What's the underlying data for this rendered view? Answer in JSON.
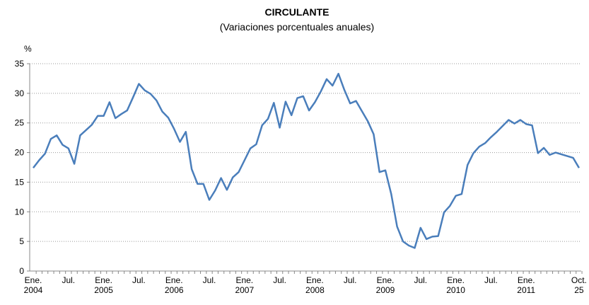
{
  "chart_data": {
    "type": "line",
    "title": "CIRCULANTE",
    "subtitle": "(Variaciones porcentuales anuales)",
    "ylabel": "%",
    "categories": [
      "Ene. 2004",
      null,
      null,
      null,
      null,
      null,
      "Jul.",
      null,
      null,
      null,
      null,
      null,
      "Ene. 2005",
      null,
      null,
      null,
      null,
      null,
      "Jul.",
      null,
      null,
      null,
      null,
      null,
      "Ene. 2006",
      null,
      null,
      null,
      null,
      null,
      "Jul.",
      null,
      null,
      null,
      null,
      null,
      "Ene. 2007",
      null,
      null,
      null,
      null,
      null,
      "Jul.",
      null,
      null,
      null,
      null,
      null,
      "Ene. 2008",
      null,
      null,
      null,
      null,
      null,
      "Jul.",
      null,
      null,
      null,
      null,
      null,
      "Ene. 2009",
      null,
      null,
      null,
      null,
      null,
      "Jul.",
      null,
      null,
      null,
      null,
      null,
      "Ene. 2010",
      null,
      null,
      null,
      null,
      null,
      "Jul.",
      null,
      null,
      null,
      null,
      null,
      "Ene. 2011",
      null,
      null,
      null,
      null,
      null,
      null,
      null,
      null,
      "Oct. 25"
    ],
    "series": [
      {
        "name": "Circulante",
        "color": "#4a7ebb",
        "values": [
          17.4,
          18.7,
          19.8,
          22.3,
          22.9,
          21.3,
          20.7,
          18.1,
          22.9,
          23.8,
          24.7,
          26.2,
          26.2,
          28.5,
          25.8,
          26.5,
          27.1,
          29.3,
          31.6,
          30.5,
          29.9,
          28.8,
          26.9,
          25.9,
          24.0,
          21.8,
          23.5,
          17.2,
          14.7,
          14.7,
          12.0,
          13.6,
          15.7,
          13.7,
          15.8,
          16.7,
          18.7,
          20.7,
          21.4,
          24.6,
          25.7,
          28.4,
          24.2,
          28.6,
          26.3,
          29.2,
          29.5,
          27.1,
          28.5,
          30.3,
          32.4,
          31.3,
          33.3,
          30.6,
          28.3,
          28.7,
          27.0,
          25.3,
          23.1,
          16.7,
          17.0,
          13.0,
          7.5,
          5.0,
          4.3,
          3.9,
          7.3,
          5.4,
          5.8,
          5.9,
          9.9,
          11.0,
          12.7,
          13.0,
          17.9,
          19.9,
          21.0,
          21.6,
          22.6,
          23.5,
          24.5,
          25.5,
          24.9,
          25.5,
          24.8,
          24.6,
          19.9,
          20.8,
          19.6,
          20.0,
          19.7,
          19.4,
          19.1,
          17.4
        ]
      }
    ],
    "ylim": [
      0,
      35
    ],
    "yticks": [
      0,
      5,
      10,
      15,
      20,
      25,
      30,
      35
    ],
    "grid": true
  }
}
